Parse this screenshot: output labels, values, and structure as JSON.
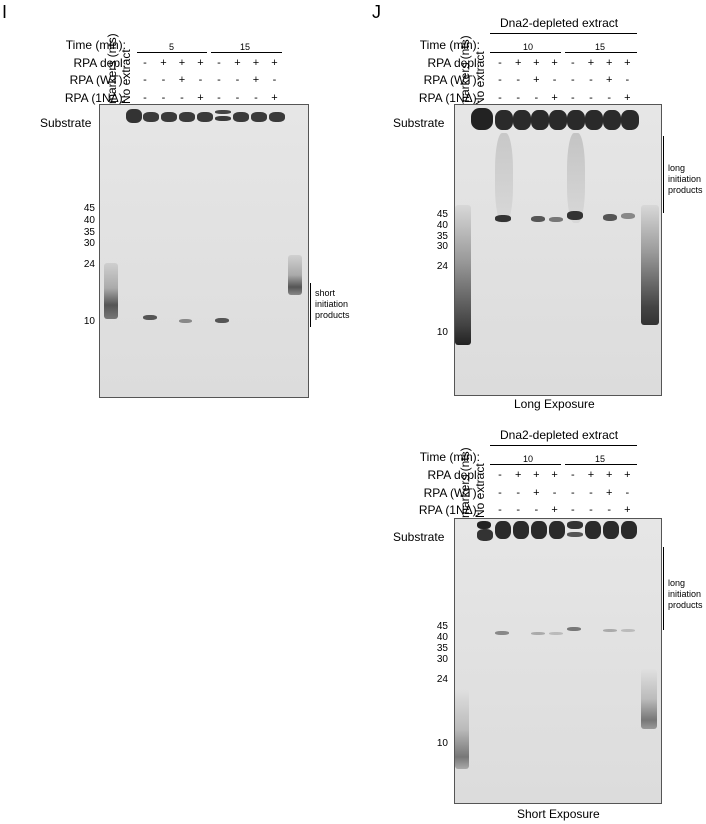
{
  "panelI": {
    "letter": "I",
    "row_labels": [
      "Time (min):",
      "RPA depl:",
      "RPA (WT):",
      "RPA (1NΔ):"
    ],
    "lane_headers": [
      "markers (nts)",
      "No extract"
    ],
    "times": [
      "5",
      "15"
    ],
    "rows": {
      "rpa_depl": [
        "-",
        "+",
        "+",
        "+",
        "-",
        "+",
        "+",
        "+"
      ],
      "rpa_wt": [
        "-",
        "-",
        "+",
        "-",
        "-",
        "-",
        "+",
        "-"
      ],
      "rpa_1n": [
        "-",
        "-",
        "-",
        "+",
        "-",
        "-",
        "-",
        "+"
      ]
    },
    "substrate": "Substrate",
    "markers": [
      "45",
      "40",
      "35",
      "30",
      "24",
      "10"
    ],
    "bracket_label": [
      "short",
      "initiation",
      "products"
    ]
  },
  "panelJ": {
    "letter": "J",
    "top": {
      "title": "Dna2-depleted extract",
      "row_labels": [
        "Time (min):",
        "RPA depl:",
        "RPA (WT):",
        "RPA (1NΔ):"
      ],
      "lane_headers": [
        "markers (nts)",
        "No extract"
      ],
      "times": [
        "10",
        "15"
      ],
      "rows": {
        "rpa_depl": [
          "-",
          "+",
          "+",
          "+",
          "-",
          "+",
          "+",
          "+"
        ],
        "rpa_wt": [
          "-",
          "-",
          "+",
          "-",
          "-",
          "-",
          "+",
          "-"
        ],
        "rpa_1n": [
          "-",
          "-",
          "-",
          "+",
          "-",
          "-",
          "-",
          "+"
        ]
      },
      "substrate": "Substrate",
      "markers": [
        "45",
        "40",
        "35",
        "30",
        "24",
        "10"
      ],
      "bracket_label": [
        "long",
        "initiation",
        "products"
      ],
      "caption": "Long Exposure"
    },
    "bottom": {
      "title": "Dna2-depleted extract",
      "row_labels": [
        "Time (min):",
        "RPA depl:",
        "RPA (WT):",
        "RPA (1NΔ):"
      ],
      "lane_headers": [
        "markers (nts)",
        "No extract"
      ],
      "times": [
        "10",
        "15"
      ],
      "rows": {
        "rpa_depl": [
          "-",
          "+",
          "+",
          "+",
          "-",
          "+",
          "+",
          "+"
        ],
        "rpa_wt": [
          "-",
          "-",
          "+",
          "-",
          "-",
          "-",
          "+",
          "-"
        ],
        "rpa_1n": [
          "-",
          "-",
          "-",
          "+",
          "-",
          "-",
          "-",
          "+"
        ]
      },
      "substrate": "Substrate",
      "markers": [
        "45",
        "40",
        "35",
        "30",
        "24",
        "10"
      ],
      "bracket_label": [
        "long",
        "initiation",
        "products"
      ],
      "caption": "Short Exposure"
    }
  }
}
